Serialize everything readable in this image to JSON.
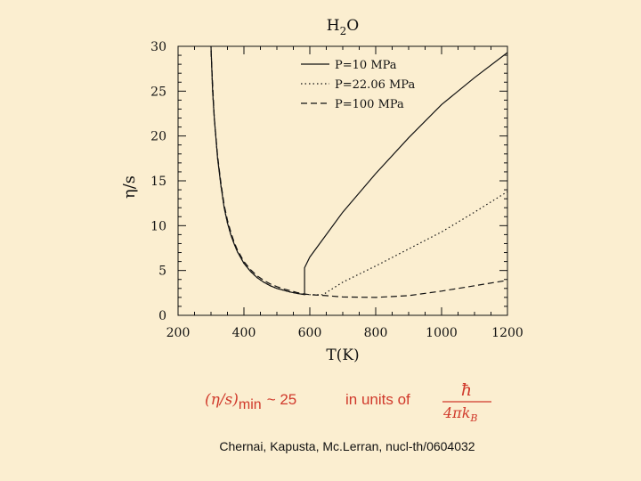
{
  "slide": {
    "formula": {
      "lhs": "(η/s)",
      "sub": "min",
      "rel": "~ 25",
      "text": "in units of",
      "numerator": "ħ",
      "denominator": "4πk",
      "denominator_sub": "B"
    },
    "citation": "Chernai, Kapusta, Mc.Lerran, nucl-th/0604032"
  },
  "colors": {
    "background": "#fbeed0",
    "formula": "#d0392b",
    "ink": "#111111"
  },
  "chart_data": {
    "type": "line",
    "title": "H",
    "title_sub": "2",
    "title_tail": "O",
    "xlabel": "T(K)",
    "ylabel": "η/s",
    "xlim": [
      200,
      1200
    ],
    "ylim": [
      0,
      30
    ],
    "xticks": [
      200,
      400,
      600,
      800,
      1000,
      1200
    ],
    "yticks": [
      0,
      5,
      10,
      15,
      20,
      25,
      30
    ],
    "legend_position": "top-right",
    "grid": false,
    "series": [
      {
        "name": "P=10 MPa",
        "style": "solid",
        "x": [
          300,
          305,
          310,
          320,
          330,
          340,
          350,
          360,
          370,
          380,
          400,
          420,
          440,
          460,
          480,
          500,
          520,
          540,
          560,
          584,
          584,
          600,
          700,
          800,
          900,
          1000,
          1100,
          1200
        ],
        "y": [
          30,
          25,
          22,
          17.5,
          14.5,
          12,
          10.3,
          9,
          8,
          7.1,
          5.8,
          4.9,
          4.2,
          3.7,
          3.3,
          3.0,
          2.8,
          2.6,
          2.45,
          2.3,
          5.3,
          6.5,
          11.5,
          15.8,
          19.8,
          23.5,
          26.5,
          29.3
        ]
      },
      {
        "name": "P=22.06 MPa",
        "style": "dotted",
        "x": [
          300,
          305,
          310,
          320,
          330,
          340,
          350,
          360,
          370,
          380,
          400,
          420,
          440,
          460,
          480,
          500,
          520,
          540,
          560,
          580,
          600,
          640,
          700,
          800,
          900,
          1000,
          1100,
          1200
        ],
        "y": [
          30,
          25,
          22,
          17.5,
          14.5,
          12,
          10.3,
          9,
          8,
          7.1,
          5.8,
          4.9,
          4.2,
          3.7,
          3.3,
          3.0,
          2.8,
          2.6,
          2.45,
          2.35,
          2.3,
          2.3,
          3.7,
          5.5,
          7.4,
          9.3,
          11.5,
          13.8
        ]
      },
      {
        "name": "P=100 MPa",
        "style": "dashed",
        "x": [
          300,
          310,
          320,
          330,
          340,
          350,
          360,
          370,
          380,
          400,
          420,
          440,
          460,
          480,
          500,
          520,
          540,
          560,
          580,
          600,
          650,
          700,
          800,
          900,
          1000,
          1100,
          1200
        ],
        "y": [
          29.5,
          22,
          17.8,
          14.8,
          12.3,
          10.6,
          9.3,
          8.2,
          7.3,
          6.0,
          5.1,
          4.4,
          3.9,
          3.5,
          3.2,
          2.95,
          2.75,
          2.55,
          2.4,
          2.3,
          2.2,
          2.05,
          2.0,
          2.2,
          2.7,
          3.3,
          3.9
        ]
      }
    ]
  }
}
